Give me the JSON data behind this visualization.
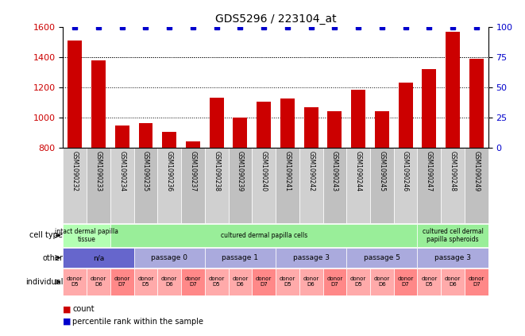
{
  "title": "GDS5296 / 223104_at",
  "samples": [
    "GSM1090232",
    "GSM1090233",
    "GSM1090234",
    "GSM1090235",
    "GSM1090236",
    "GSM1090237",
    "GSM1090238",
    "GSM1090239",
    "GSM1090240",
    "GSM1090241",
    "GSM1090242",
    "GSM1090243",
    "GSM1090244",
    "GSM1090245",
    "GSM1090246",
    "GSM1090247",
    "GSM1090248",
    "GSM1090249"
  ],
  "counts": [
    1510,
    1380,
    945,
    960,
    905,
    840,
    1130,
    1000,
    1105,
    1125,
    1065,
    1040,
    1185,
    1040,
    1230,
    1320,
    1565,
    1390
  ],
  "percentile": [
    100,
    100,
    100,
    100,
    100,
    100,
    100,
    100,
    100,
    100,
    100,
    100,
    100,
    100,
    100,
    100,
    100,
    100
  ],
  "bar_color": "#cc0000",
  "dot_color": "#0000cc",
  "ylim_left": [
    800,
    1600
  ],
  "ylim_right": [
    0,
    100
  ],
  "yticks_left": [
    800,
    1000,
    1200,
    1400,
    1600
  ],
  "yticks_right": [
    0,
    25,
    50,
    75,
    100
  ],
  "grid_values": [
    1000,
    1200,
    1400
  ],
  "cell_type_labels": [
    {
      "text": "intact dermal papilla\ntissue",
      "start": 0,
      "end": 2,
      "color": "#b3ffb3"
    },
    {
      "text": "cultured dermal papilla cells",
      "start": 2,
      "end": 15,
      "color": "#99ee99"
    },
    {
      "text": "cultured cell dermal\npapilla spheroids",
      "start": 15,
      "end": 18,
      "color": "#99ee99"
    }
  ],
  "other_labels": [
    {
      "text": "n/a",
      "start": 0,
      "end": 3,
      "color": "#6666cc"
    },
    {
      "text": "passage 0",
      "start": 3,
      "end": 6,
      "color": "#aaaadd"
    },
    {
      "text": "passage 1",
      "start": 6,
      "end": 9,
      "color": "#aaaadd"
    },
    {
      "text": "passage 3",
      "start": 9,
      "end": 12,
      "color": "#aaaadd"
    },
    {
      "text": "passage 5",
      "start": 12,
      "end": 15,
      "color": "#aaaadd"
    },
    {
      "text": "passage 3",
      "start": 15,
      "end": 18,
      "color": "#aaaadd"
    }
  ],
  "individual_labels": [
    {
      "text": "donor\nD5",
      "idx": 0,
      "color": "#ffaaaa"
    },
    {
      "text": "donor\nD6",
      "idx": 1,
      "color": "#ffaaaa"
    },
    {
      "text": "donor\nD7",
      "idx": 2,
      "color": "#ff8888"
    },
    {
      "text": "donor\nD5",
      "idx": 3,
      "color": "#ffaaaa"
    },
    {
      "text": "donor\nD6",
      "idx": 4,
      "color": "#ffaaaa"
    },
    {
      "text": "donor\nD7",
      "idx": 5,
      "color": "#ff8888"
    },
    {
      "text": "donor\nD5",
      "idx": 6,
      "color": "#ffaaaa"
    },
    {
      "text": "donor\nD6",
      "idx": 7,
      "color": "#ffaaaa"
    },
    {
      "text": "donor\nD7",
      "idx": 8,
      "color": "#ff8888"
    },
    {
      "text": "donor\nD5",
      "idx": 9,
      "color": "#ffaaaa"
    },
    {
      "text": "donor\nD6",
      "idx": 10,
      "color": "#ffaaaa"
    },
    {
      "text": "donor\nD7",
      "idx": 11,
      "color": "#ff8888"
    },
    {
      "text": "donor\nD5",
      "idx": 12,
      "color": "#ffaaaa"
    },
    {
      "text": "donor\nD6",
      "idx": 13,
      "color": "#ffaaaa"
    },
    {
      "text": "donor\nD7",
      "idx": 14,
      "color": "#ff8888"
    },
    {
      "text": "donor\nD5",
      "idx": 15,
      "color": "#ffaaaa"
    },
    {
      "text": "donor\nD6",
      "idx": 16,
      "color": "#ffaaaa"
    },
    {
      "text": "donor\nD7",
      "idx": 17,
      "color": "#ff8888"
    }
  ],
  "row_labels": [
    "cell type",
    "other",
    "individual"
  ],
  "legend_items": [
    {
      "label": "count",
      "color": "#cc0000"
    },
    {
      "label": "percentile rank within the sample",
      "color": "#0000cc"
    }
  ]
}
